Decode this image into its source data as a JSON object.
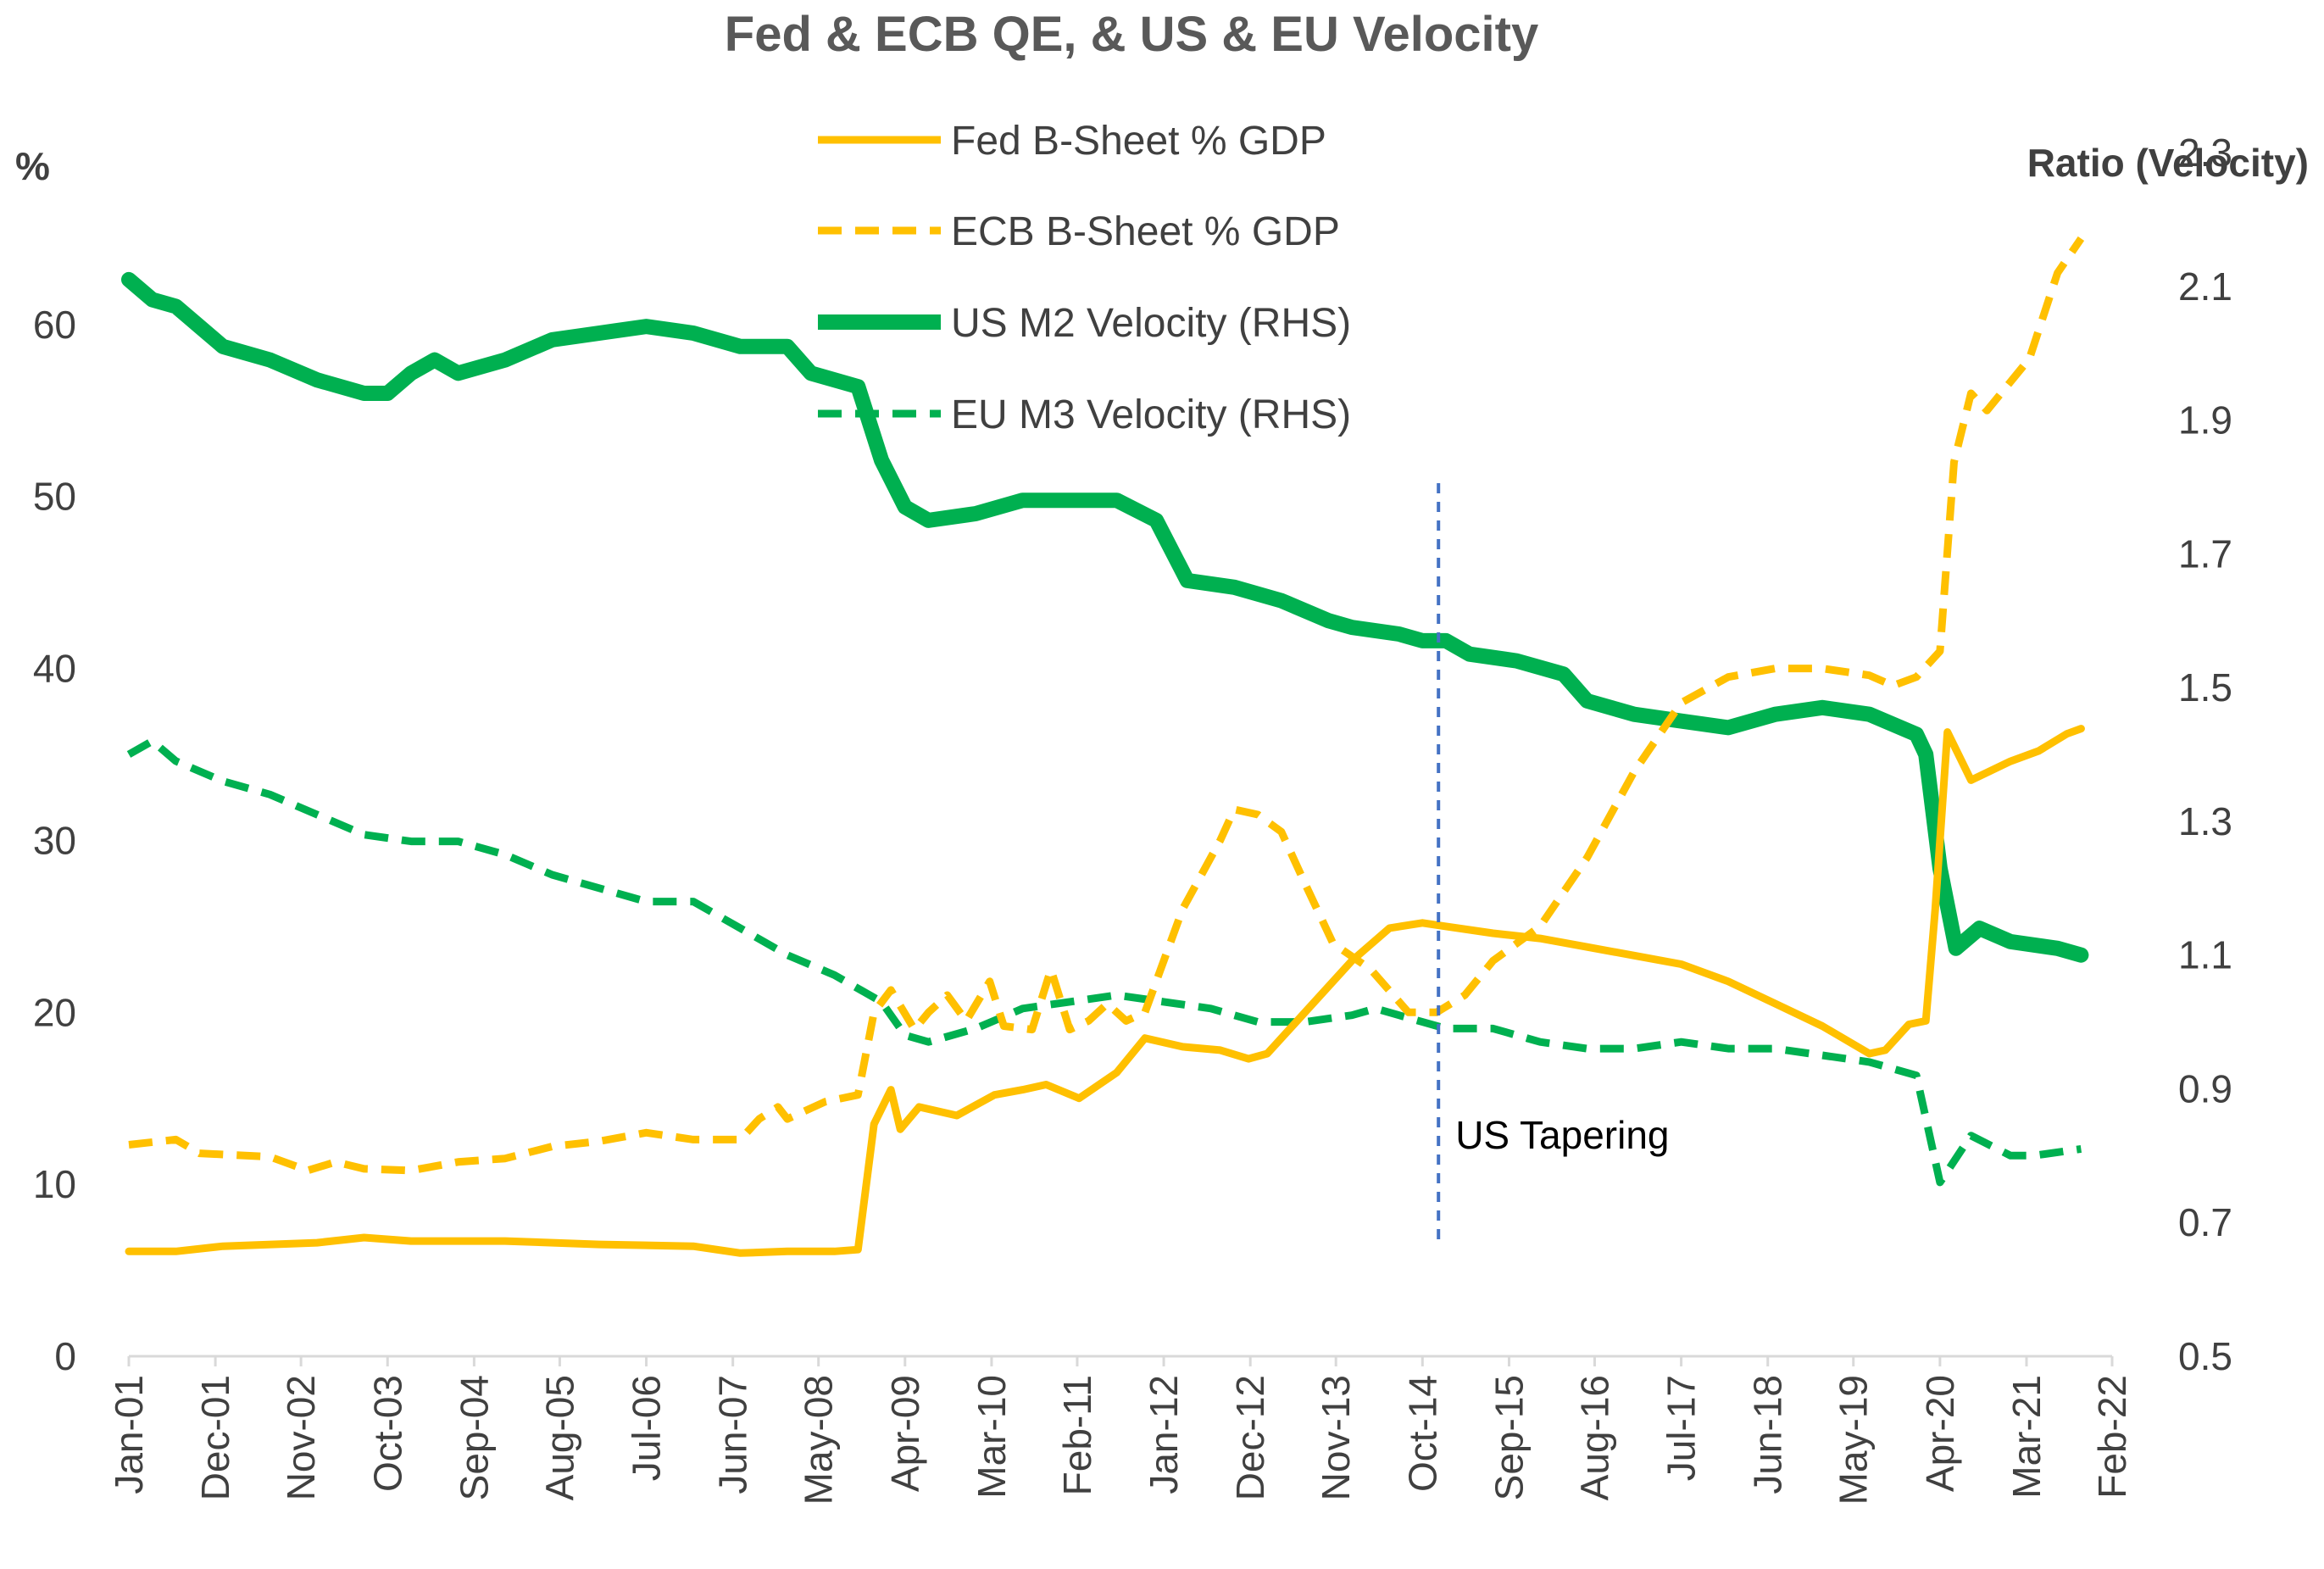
{
  "chart_data": {
    "type": "line",
    "title": "Fed & ECB QE, & US & EU Velocity",
    "ylabel_left": "%",
    "ylabel_right": "Ratio (Velocity)",
    "ylim_left": [
      0,
      70
    ],
    "ylim_right": [
      0.5,
      2.3
    ],
    "yticks_left": [
      0,
      10,
      20,
      30,
      40,
      50,
      60
    ],
    "yticks_right": [
      "0.5",
      "0.7",
      "0.9",
      "1.1",
      "1.3",
      "1.5",
      "1.7",
      "1.9",
      "2.1",
      "2.3"
    ],
    "xlim": [
      2001.0,
      2022.08
    ],
    "xticks": [
      {
        "label": "Jan-01",
        "t": 2001.0
      },
      {
        "label": "Dec-01",
        "t": 2001.92
      },
      {
        "label": "Nov-02",
        "t": 2002.83
      },
      {
        "label": "Oct-03",
        "t": 2003.75
      },
      {
        "label": "Sep-04",
        "t": 2004.67
      },
      {
        "label": "Aug-05",
        "t": 2005.58
      },
      {
        "label": "Jul-06",
        "t": 2006.5
      },
      {
        "label": "Jun-07",
        "t": 2007.42
      },
      {
        "label": "May-08",
        "t": 2008.33
      },
      {
        "label": "Apr-09",
        "t": 2009.25
      },
      {
        "label": "Mar-10",
        "t": 2010.17
      },
      {
        "label": "Feb-11",
        "t": 2011.08
      },
      {
        "label": "Jan-12",
        "t": 2012.0
      },
      {
        "label": "Dec-12",
        "t": 2012.92
      },
      {
        "label": "Nov-13",
        "t": 2013.83
      },
      {
        "label": "Oct-14",
        "t": 2014.75
      },
      {
        "label": "Sep-15",
        "t": 2015.67
      },
      {
        "label": "Aug-16",
        "t": 2016.58
      },
      {
        "label": "Jul-17",
        "t": 2017.5
      },
      {
        "label": "Jun-18",
        "t": 2018.42
      },
      {
        "label": "May-19",
        "t": 2019.33
      },
      {
        "label": "Apr-20",
        "t": 2020.25
      },
      {
        "label": "Mar-21",
        "t": 2021.17
      },
      {
        "label": "Feb-22",
        "t": 2022.08
      }
    ],
    "legend": {
      "position": "top-center"
    },
    "annotations": [
      {
        "text": "US Tapering",
        "x": 2014.92,
        "type": "vertical-line",
        "color": "#4472C4"
      }
    ],
    "series": [
      {
        "name": "Fed B-Sheet % GDP",
        "axis": "left",
        "color": "#FFC000",
        "style": "solid",
        "points": [
          [
            2001.0,
            6.1
          ],
          [
            2001.5,
            6.1
          ],
          [
            2002.0,
            6.4
          ],
          [
            2003.0,
            6.6
          ],
          [
            2003.5,
            6.9
          ],
          [
            2004.0,
            6.7
          ],
          [
            2005.0,
            6.7
          ],
          [
            2006.0,
            6.5
          ],
          [
            2007.0,
            6.4
          ],
          [
            2007.5,
            6.0
          ],
          [
            2008.0,
            6.1
          ],
          [
            2008.5,
            6.1
          ],
          [
            2008.75,
            6.2
          ],
          [
            2008.92,
            13.5
          ],
          [
            2009.1,
            15.5
          ],
          [
            2009.2,
            13.2
          ],
          [
            2009.4,
            14.5
          ],
          [
            2009.8,
            14.0
          ],
          [
            2010.2,
            15.2
          ],
          [
            2010.5,
            15.5
          ],
          [
            2010.75,
            15.8
          ],
          [
            2011.1,
            15.0
          ],
          [
            2011.5,
            16.5
          ],
          [
            2011.8,
            18.5
          ],
          [
            2012.2,
            18.0
          ],
          [
            2012.6,
            17.8
          ],
          [
            2012.9,
            17.3
          ],
          [
            2013.1,
            17.6
          ],
          [
            2013.5,
            20.0
          ],
          [
            2014.0,
            23.0
          ],
          [
            2014.4,
            24.9
          ],
          [
            2014.75,
            25.2
          ],
          [
            2015.0,
            25.0
          ],
          [
            2015.5,
            24.6
          ],
          [
            2016.0,
            24.3
          ],
          [
            2016.5,
            23.8
          ],
          [
            2017.0,
            23.3
          ],
          [
            2017.5,
            22.8
          ],
          [
            2018.0,
            21.8
          ],
          [
            2018.5,
            20.5
          ],
          [
            2019.0,
            19.2
          ],
          [
            2019.5,
            17.6
          ],
          [
            2019.67,
            17.8
          ],
          [
            2019.92,
            19.3
          ],
          [
            2020.1,
            19.5
          ],
          [
            2020.2,
            26.0
          ],
          [
            2020.33,
            36.3
          ],
          [
            2020.58,
            33.5
          ],
          [
            2021.0,
            34.6
          ],
          [
            2021.3,
            35.2
          ],
          [
            2021.6,
            36.2
          ],
          [
            2021.75,
            36.5
          ]
        ]
      },
      {
        "name": "ECB B-Sheet % GDP",
        "axis": "left",
        "color": "#FFC000",
        "style": "dashed",
        "points": [
          [
            2001.0,
            12.3
          ],
          [
            2001.5,
            12.6
          ],
          [
            2001.75,
            11.8
          ],
          [
            2002.5,
            11.6
          ],
          [
            2002.9,
            10.8
          ],
          [
            2003.2,
            11.3
          ],
          [
            2003.5,
            10.9
          ],
          [
            2004.0,
            10.8
          ],
          [
            2004.5,
            11.3
          ],
          [
            2005.0,
            11.5
          ],
          [
            2005.5,
            12.2
          ],
          [
            2006.0,
            12.5
          ],
          [
            2006.5,
            13.0
          ],
          [
            2007.0,
            12.6
          ],
          [
            2007.5,
            12.6
          ],
          [
            2007.7,
            13.8
          ],
          [
            2007.9,
            14.5
          ],
          [
            2008.0,
            13.8
          ],
          [
            2008.4,
            14.8
          ],
          [
            2008.75,
            15.2
          ],
          [
            2008.92,
            20.0
          ],
          [
            2009.1,
            21.3
          ],
          [
            2009.35,
            19.0
          ],
          [
            2009.5,
            20.0
          ],
          [
            2009.7,
            21.0
          ],
          [
            2009.9,
            19.5
          ],
          [
            2010.15,
            21.8
          ],
          [
            2010.3,
            19.2
          ],
          [
            2010.6,
            19.0
          ],
          [
            2010.8,
            22.5
          ],
          [
            2011.0,
            19.0
          ],
          [
            2011.2,
            19.5
          ],
          [
            2011.4,
            20.5
          ],
          [
            2011.6,
            19.5
          ],
          [
            2011.8,
            20.0
          ],
          [
            2012.0,
            23.0
          ],
          [
            2012.2,
            26.0
          ],
          [
            2012.4,
            28.0
          ],
          [
            2012.6,
            30.0
          ],
          [
            2012.75,
            31.8
          ],
          [
            2013.0,
            31.5
          ],
          [
            2013.25,
            30.5
          ],
          [
            2013.5,
            27.5
          ],
          [
            2013.8,
            24.0
          ],
          [
            2014.2,
            22.5
          ],
          [
            2014.6,
            20.0
          ],
          [
            2014.9,
            20.0
          ],
          [
            2015.2,
            21.0
          ],
          [
            2015.5,
            23.0
          ],
          [
            2016.0,
            25.0
          ],
          [
            2016.5,
            29.0
          ],
          [
            2017.0,
            34.0
          ],
          [
            2017.5,
            38.0
          ],
          [
            2018.0,
            39.5
          ],
          [
            2018.5,
            40.0
          ],
          [
            2019.0,
            40.0
          ],
          [
            2019.5,
            39.6
          ],
          [
            2019.75,
            39.0
          ],
          [
            2020.0,
            39.5
          ],
          [
            2020.25,
            41.0
          ],
          [
            2020.4,
            52.0
          ],
          [
            2020.58,
            56.0
          ],
          [
            2020.75,
            55.0
          ],
          [
            2020.9,
            56.0
          ],
          [
            2021.2,
            58.0
          ],
          [
            2021.5,
            63.0
          ],
          [
            2021.75,
            65.0
          ]
        ]
      },
      {
        "name": "US M2 Velocity (RHS)",
        "axis": "right",
        "color": "#00B050",
        "style": "solid",
        "points": [
          [
            2001.0,
            2.11
          ],
          [
            2001.25,
            2.08
          ],
          [
            2001.5,
            2.07
          ],
          [
            2001.75,
            2.04
          ],
          [
            2002.0,
            2.01
          ],
          [
            2002.5,
            1.99
          ],
          [
            2003.0,
            1.96
          ],
          [
            2003.5,
            1.94
          ],
          [
            2003.75,
            1.94
          ],
          [
            2004.0,
            1.97
          ],
          [
            2004.25,
            1.99
          ],
          [
            2004.5,
            1.97
          ],
          [
            2005.0,
            1.99
          ],
          [
            2005.5,
            2.02
          ],
          [
            2006.0,
            2.03
          ],
          [
            2006.5,
            2.04
          ],
          [
            2007.0,
            2.03
          ],
          [
            2007.5,
            2.01
          ],
          [
            2008.0,
            2.01
          ],
          [
            2008.25,
            1.97
          ],
          [
            2008.75,
            1.95
          ],
          [
            2009.0,
            1.84
          ],
          [
            2009.25,
            1.77
          ],
          [
            2009.5,
            1.75
          ],
          [
            2010.0,
            1.76
          ],
          [
            2010.5,
            1.78
          ],
          [
            2011.0,
            1.78
          ],
          [
            2011.5,
            1.78
          ],
          [
            2011.92,
            1.75
          ],
          [
            2012.25,
            1.66
          ],
          [
            2012.75,
            1.65
          ],
          [
            2013.25,
            1.63
          ],
          [
            2013.75,
            1.6
          ],
          [
            2014.0,
            1.59
          ],
          [
            2014.5,
            1.58
          ],
          [
            2014.75,
            1.57
          ],
          [
            2015.0,
            1.57
          ],
          [
            2015.25,
            1.55
          ],
          [
            2015.75,
            1.54
          ],
          [
            2016.25,
            1.52
          ],
          [
            2016.5,
            1.48
          ],
          [
            2017.0,
            1.46
          ],
          [
            2017.5,
            1.45
          ],
          [
            2018.0,
            1.44
          ],
          [
            2018.5,
            1.46
          ],
          [
            2019.0,
            1.47
          ],
          [
            2019.5,
            1.46
          ],
          [
            2020.0,
            1.43
          ],
          [
            2020.1,
            1.4
          ],
          [
            2020.25,
            1.23
          ],
          [
            2020.42,
            1.11
          ],
          [
            2020.67,
            1.14
          ],
          [
            2021.0,
            1.12
          ],
          [
            2021.5,
            1.11
          ],
          [
            2021.75,
            1.1
          ]
        ]
      },
      {
        "name": "EU M3 Velocity (RHS)",
        "axis": "right",
        "color": "#00B050",
        "style": "dashed",
        "points": [
          [
            2001.0,
            1.4
          ],
          [
            2001.25,
            1.42
          ],
          [
            2001.5,
            1.39
          ],
          [
            2002.0,
            1.36
          ],
          [
            2002.5,
            1.34
          ],
          [
            2003.0,
            1.31
          ],
          [
            2003.5,
            1.28
          ],
          [
            2004.0,
            1.27
          ],
          [
            2004.5,
            1.27
          ],
          [
            2005.0,
            1.25
          ],
          [
            2005.5,
            1.22
          ],
          [
            2006.0,
            1.2
          ],
          [
            2006.5,
            1.18
          ],
          [
            2007.0,
            1.18
          ],
          [
            2007.5,
            1.14
          ],
          [
            2008.0,
            1.1
          ],
          [
            2008.5,
            1.07
          ],
          [
            2009.0,
            1.03
          ],
          [
            2009.25,
            0.98
          ],
          [
            2009.5,
            0.97
          ],
          [
            2010.0,
            0.99
          ],
          [
            2010.5,
            1.02
          ],
          [
            2011.0,
            1.03
          ],
          [
            2011.5,
            1.04
          ],
          [
            2012.0,
            1.03
          ],
          [
            2012.5,
            1.02
          ],
          [
            2013.0,
            1.0
          ],
          [
            2013.5,
            1.0
          ],
          [
            2014.0,
            1.01
          ],
          [
            2014.25,
            1.02
          ],
          [
            2014.75,
            1.0
          ],
          [
            2015.0,
            0.99
          ],
          [
            2015.5,
            0.99
          ],
          [
            2016.0,
            0.97
          ],
          [
            2016.5,
            0.96
          ],
          [
            2017.0,
            0.96
          ],
          [
            2017.5,
            0.97
          ],
          [
            2018.0,
            0.96
          ],
          [
            2018.5,
            0.96
          ],
          [
            2019.0,
            0.95
          ],
          [
            2019.5,
            0.94
          ],
          [
            2019.75,
            0.93
          ],
          [
            2020.0,
            0.92
          ],
          [
            2020.25,
            0.76
          ],
          [
            2020.58,
            0.83
          ],
          [
            2021.0,
            0.8
          ],
          [
            2021.25,
            0.8
          ],
          [
            2021.75,
            0.81
          ]
        ]
      }
    ]
  }
}
